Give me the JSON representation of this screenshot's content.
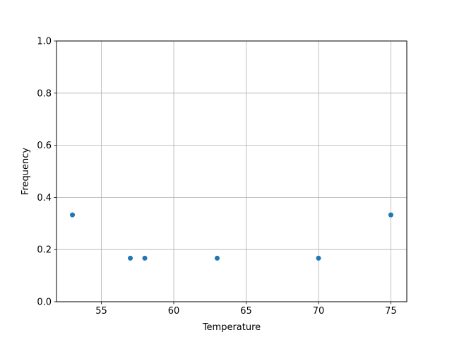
{
  "chart_data": {
    "type": "scatter",
    "title": "",
    "xlabel": "Temperature",
    "ylabel": "Frequency",
    "xlim": [
      51.9,
      76.1
    ],
    "ylim": [
      0,
      1.0
    ],
    "grid": true,
    "x_ticks": [
      55,
      60,
      65,
      70,
      75
    ],
    "x_tick_labels": [
      "55",
      "60",
      "65",
      "70",
      "75"
    ],
    "y_ticks": [
      0,
      0.2,
      0.4,
      0.6,
      0.8,
      1.0
    ],
    "y_tick_labels": [
      "0.0",
      "0.2",
      "0.4",
      "0.6",
      "0.8",
      "1.0"
    ],
    "x": [
      53,
      57,
      58,
      63,
      70,
      75
    ],
    "y": [
      0.333,
      0.167,
      0.167,
      0.167,
      0.167,
      0.333
    ],
    "marker_color": "#1f77b4",
    "grid_color": "#b0b0b0"
  }
}
